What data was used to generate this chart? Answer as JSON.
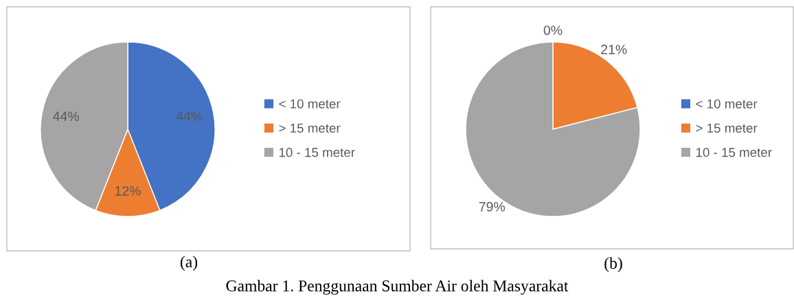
{
  "chart_data": [
    {
      "type": "pie",
      "title": "(a)",
      "categories": [
        "< 10 meter",
        "> 15 meter",
        "10 - 15 meter"
      ],
      "values": [
        44,
        12,
        44
      ],
      "colors": [
        "#4472c4",
        "#ed7d31",
        "#a5a5a5"
      ],
      "value_labels": [
        "44%",
        "12%",
        "44%"
      ],
      "legend": "right",
      "annotations": [
        "Gambar 1. Penggunaan Sumber Air oleh Masyarakat"
      ]
    },
    {
      "type": "pie",
      "title": "(b)",
      "categories": [
        "< 10 meter",
        "> 15 meter",
        "10 - 15 meter"
      ],
      "values": [
        0,
        21,
        79
      ],
      "colors": [
        "#4472c4",
        "#ed7d31",
        "#a5a5a5"
      ],
      "value_labels": [
        "0%",
        "21%",
        "79%"
      ],
      "legend": "right"
    }
  ]
}
